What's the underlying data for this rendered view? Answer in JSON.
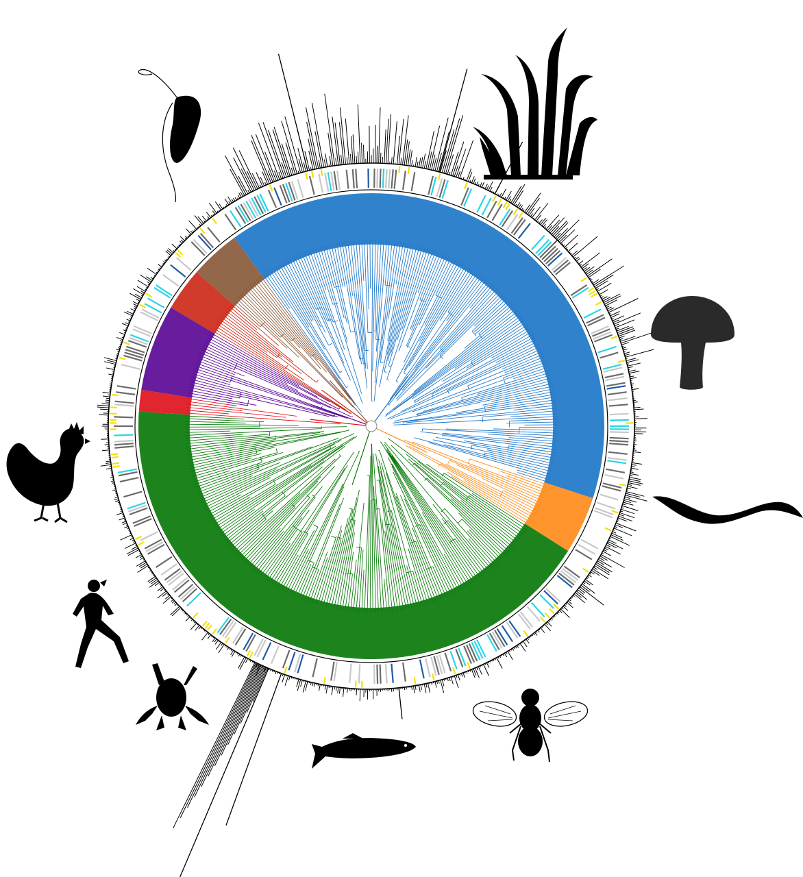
{
  "figure": {
    "background": "#ffffff",
    "outline_color": "#000000",
    "ring_colors": {
      "gray": "#6b6b6b",
      "light_gray": "#c8c8c8",
      "cyan": "#2ad4e6",
      "yellow": "#f2e200",
      "blue_marker": "#1e5aa8"
    },
    "clades": [
      {
        "color": "#1f77c8",
        "share": 0.4
      },
      {
        "color": "#ff8c1a",
        "share": 0.04
      },
      {
        "color": "#0a7a0a",
        "share": 0.42
      },
      {
        "color": "#e0141e",
        "share": 0.015
      },
      {
        "color": "#5a0a96",
        "share": 0.06
      },
      {
        "color": "#cc2a1a",
        "share": 0.03
      },
      {
        "color": "#8a5a3a",
        "share": 0.035
      }
    ],
    "icons": [
      "protist-icon",
      "plant-icon",
      "mushroom-icon",
      "worm-icon",
      "fly-icon",
      "fish-icon",
      "frog-icon",
      "human-runner-icon",
      "chicken-icon"
    ]
  }
}
